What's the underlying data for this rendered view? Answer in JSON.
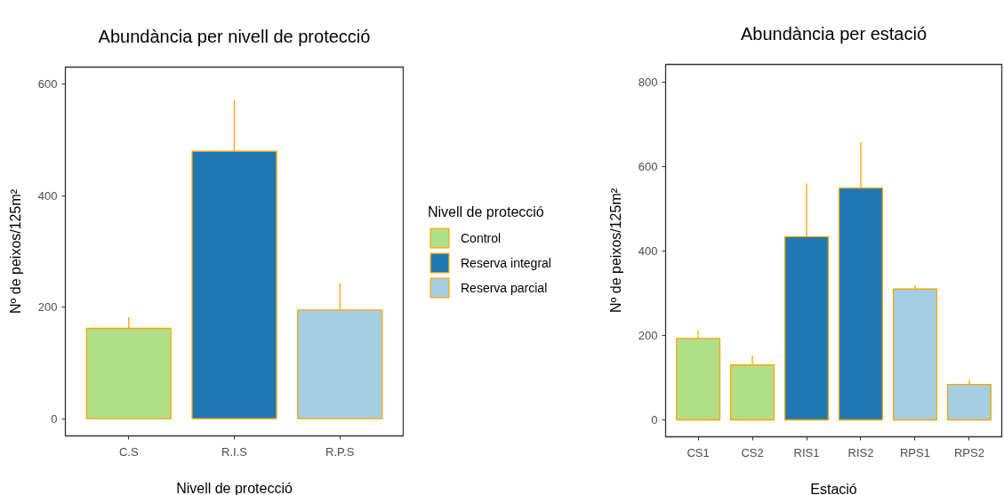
{
  "chart_data": [
    {
      "type": "bar",
      "title": "Abundància per nivell de protecció",
      "xlabel": "Nivell de protecció",
      "ylabel": "Nº de peixos/125m²",
      "legend_title": "Nivell de protecció",
      "categories": [
        "C.S",
        "R.I.S",
        "R.P.S"
      ],
      "stacked": true,
      "series": [
        {
          "name": "Control",
          "color": "#b2df8a",
          "values": [
            162,
            null,
            null
          ],
          "errors": [
            [
              162,
              182
            ],
            null,
            null
          ]
        },
        {
          "name": "Reserva integral",
          "color": "#1f78b4",
          "values": [
            null,
            480,
            null
          ],
          "errors": [
            null,
            [
              480,
              572
            ],
            null
          ]
        },
        {
          "name": "Reserva parcial",
          "color": "#a6cee3",
          "values": [
            null,
            null,
            195
          ],
          "errors": [
            null,
            null,
            [
              195,
              243
            ]
          ]
        }
      ],
      "ylim": [
        -31,
        631
      ],
      "yticks": [
        0,
        200,
        400,
        600
      ],
      "grid": false,
      "legend": "right"
    },
    {
      "type": "bar",
      "title": "Abundància per estació",
      "xlabel": "Estació",
      "ylabel": "Nº de peixos/125m²",
      "categories": [
        "CS1",
        "CS2",
        "RIS1",
        "RIS2",
        "RPS1",
        "RPS2"
      ],
      "stacked": true,
      "series": [
        {
          "color": "#b2df8a",
          "values": [
            193,
            130,
            null,
            null,
            null,
            null
          ],
          "errors": [
            [
              193,
              212
            ],
            [
              130,
              152
            ],
            null,
            null,
            null,
            null
          ]
        },
        {
          "color": "#1f78b4",
          "values": [
            null,
            null,
            434,
            549,
            null,
            null
          ],
          "errors": [
            null,
            null,
            [
              434,
              560
            ],
            [
              549,
              658
            ],
            null,
            null
          ]
        },
        {
          "color": "#a6cee3",
          "values": [
            null,
            null,
            null,
            null,
            310,
            84
          ],
          "errors": [
            null,
            null,
            null,
            null,
            [
              310,
              319
            ],
            [
              84,
              95
            ]
          ]
        }
      ],
      "ylim": [
        -40,
        842
      ],
      "yticks": [
        0,
        200,
        400,
        600,
        800
      ],
      "grid": false
    }
  ]
}
